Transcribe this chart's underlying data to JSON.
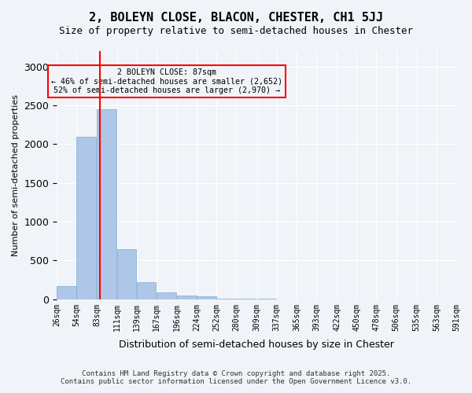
{
  "title_line1": "2, BOLEYN CLOSE, BLACON, CHESTER, CH1 5JJ",
  "title_line2": "Size of property relative to semi-detached houses in Chester",
  "xlabel": "Distribution of semi-detached houses by size in Chester",
  "ylabel": "Number of semi-detached properties",
  "bar_values": [
    170,
    2100,
    2450,
    650,
    220,
    90,
    50,
    40,
    10,
    5,
    5,
    0,
    0,
    0,
    0,
    0,
    0,
    0,
    0,
    0
  ],
  "bin_edges": [
    26,
    54,
    83,
    111,
    139,
    167,
    196,
    224,
    252,
    280,
    309,
    337,
    365,
    393,
    422,
    450,
    478,
    506,
    535,
    563,
    591
  ],
  "bin_labels": [
    "26sqm",
    "54sqm",
    "83sqm",
    "111sqm",
    "139sqm",
    "167sqm",
    "196sqm",
    "224sqm",
    "252sqm",
    "280sqm",
    "309sqm",
    "337sqm",
    "365sqm",
    "393sqm",
    "422sqm",
    "450sqm",
    "478sqm",
    "506sqm",
    "535sqm",
    "563sqm",
    "591sqm"
  ],
  "bar_color": "#aec6e8",
  "bar_edgecolor": "#7aadd4",
  "property_line_x": 87,
  "annotation_title": "2 BOLEYN CLOSE: 87sqm",
  "annotation_line1": "← 46% of semi-detached houses are smaller (2,652)",
  "annotation_line2": "52% of semi-detached houses are larger (2,970) →",
  "annotation_box_color": "#ff0000",
  "ylim": [
    0,
    3200
  ],
  "yticks": [
    0,
    500,
    1000,
    1500,
    2000,
    2500,
    3000
  ],
  "background_color": "#f0f4f8",
  "grid_color": "#ffffff",
  "footer_line1": "Contains HM Land Registry data © Crown copyright and database right 2025.",
  "footer_line2": "Contains public sector information licensed under the Open Government Licence v3.0."
}
